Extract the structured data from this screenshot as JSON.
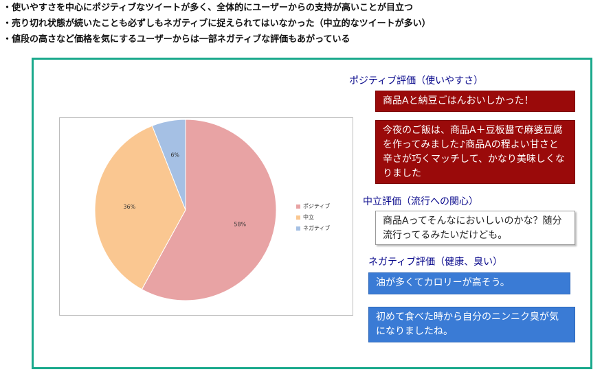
{
  "bullets": [
    "・使いやすさを中心にポジティブなツイートが多く、全体的にユーザーからの支持が高いことが目立つ",
    "・売り切れ状態が続いたことも必ずしもネガティブに捉えられてはいなかった（中立的なツイートが多い）",
    "・値段の高さなど価格を気にするユーザーからは一部ネガティブな評価もあがっている"
  ],
  "chart_data": {
    "type": "pie",
    "categories": [
      "ポジティブ",
      "中立",
      "ネガティブ"
    ],
    "values": [
      58,
      36,
      6
    ],
    "labels": [
      "58%",
      "36%",
      "6%"
    ],
    "colors": [
      "#e8a3a4",
      "#fac791",
      "#a5c0e4"
    ],
    "legend": "right"
  },
  "sections": {
    "positive": {
      "heading": "ポジティブ評価（使いやすさ）",
      "tweets": [
        "商品Aと納豆ごはんおいしかった！",
        "今夜のご飯は、商品A＋豆板醤で麻婆豆腐を作ってみました♪商品Aの程よい甘さと辛さが巧くマッチして、かなり美味しくなりました"
      ]
    },
    "neutral": {
      "heading": "中立評価（流行への関心）",
      "tweets": [
        "商品Aってそんなにおいしいのかな？随分流行ってるみたいだけども。"
      ]
    },
    "negative": {
      "heading": "ネガティブ評価（健康、臭い）",
      "tweets": [
        "油が多くてカロリーが高そう。",
        "初めて食べた時から自分のニンニク臭が気になりましたね。"
      ]
    }
  }
}
